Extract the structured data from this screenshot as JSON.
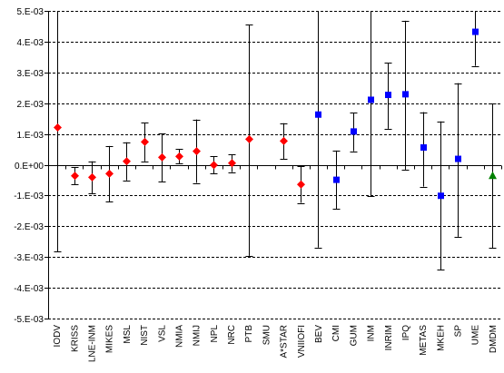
{
  "chart_data": {
    "type": "scatter",
    "ylim": [
      -0.005,
      0.005
    ],
    "yticks": [
      -0.005,
      -0.004,
      -0.003,
      -0.002,
      -0.001,
      0.0,
      0.001,
      0.002,
      0.003,
      0.004,
      0.005
    ],
    "ytick_labels": [
      "-5.E-03",
      "-4.E-03",
      "-3.E-03",
      "-2.E-03",
      "-1.E-03",
      "0.E+00",
      "1.E-03",
      "2.E-03",
      "3.E-03",
      "4.E-03",
      "5.E-03"
    ],
    "categories": [
      "IODV",
      "KRISS",
      "LNE-INM",
      "MIKES",
      "MSL",
      "NIST",
      "VSL",
      "NMIA",
      "NMIJ",
      "NPL",
      "NRC",
      "PTB",
      "SMU",
      "A*STAR",
      "VNIIOFI",
      "BEV",
      "CMI",
      "GUM",
      "INM",
      "INRIM",
      "IPQ",
      "METAS",
      "MKEH",
      "SP",
      "UME",
      "DMDM"
    ],
    "grid": "horizontal dashed",
    "legend": "none",
    "colors": {
      "group_a": "#ff0000",
      "group_b": "#0000ff",
      "group_c": "#008000",
      "axis": "#000000",
      "grid": "#000000"
    },
    "series": [
      {
        "marker": "diamond",
        "color": "#ff0000",
        "points": [
          {
            "category": "IODV",
            "y": 0.00121,
            "low": -0.00283,
            "high": 0.00515
          },
          {
            "category": "KRISS",
            "y": -0.00036,
            "low": -0.00064,
            "high": -8e-05
          },
          {
            "category": "LNE-INM",
            "y": -0.00041,
            "low": -0.00093,
            "high": 0.00011
          },
          {
            "category": "MIKES",
            "y": -0.00029,
            "low": -0.00119,
            "high": 0.00061
          },
          {
            "category": "MSL",
            "y": 0.00011,
            "low": -0.00051,
            "high": 0.00073
          },
          {
            "category": "NIST",
            "y": 0.00074,
            "low": 0.00011,
            "high": 0.00137
          },
          {
            "category": "VSL",
            "y": 0.00024,
            "low": -0.00056,
            "high": 0.00101
          },
          {
            "category": "NMIA",
            "y": 0.00027,
            "low": 3e-05,
            "high": 0.00051
          },
          {
            "category": "NMIJ",
            "y": 0.00044,
            "low": -0.00059,
            "high": 0.00147
          },
          {
            "category": "NPL",
            "y": -1e-05,
            "low": -0.00029,
            "high": 0.00027
          },
          {
            "category": "NRC",
            "y": 5e-05,
            "low": -0.00024,
            "high": 0.00034
          },
          {
            "category": "PTB",
            "y": 0.00083,
            "low": -0.00296,
            "high": 0.00455
          },
          {
            "category": "A*STAR",
            "y": 0.00077,
            "low": 0.00019,
            "high": 0.00135
          },
          {
            "category": "VNIIOFI",
            "y": -0.00064,
            "low": -0.00124,
            "high": -4e-05
          }
        ]
      },
      {
        "marker": "square",
        "color": "#0000ff",
        "points": [
          {
            "category": "BEV",
            "y": 0.00163,
            "low": -0.00269,
            "high": 0.00515
          },
          {
            "category": "CMI",
            "y": -0.00049,
            "low": -0.00144,
            "high": 0.00046
          },
          {
            "category": "GUM",
            "y": 0.00108,
            "low": 0.00044,
            "high": 0.00169
          },
          {
            "category": "INM",
            "y": 0.00211,
            "low": -0.00101,
            "high": 0.00515
          },
          {
            "category": "INRIM",
            "y": 0.00227,
            "low": 0.00117,
            "high": 0.00331
          },
          {
            "category": "IPQ",
            "y": 0.00229,
            "low": -0.00016,
            "high": 0.00468
          },
          {
            "category": "METAS",
            "y": 0.00056,
            "low": -0.00071,
            "high": 0.00171
          },
          {
            "category": "MKEH",
            "y": -0.00101,
            "low": -0.00342,
            "high": 0.00141
          },
          {
            "category": "SP",
            "y": 0.00019,
            "low": -0.00234,
            "high": 0.00265
          },
          {
            "category": "UME",
            "y": 0.00432,
            "low": 0.00321,
            "high": 0.00515
          }
        ]
      },
      {
        "marker": "triangle",
        "color": "#008000",
        "points": [
          {
            "category": "DMDM",
            "y": -0.00036,
            "low": -0.00271,
            "high": 0.00199
          }
        ]
      }
    ]
  }
}
